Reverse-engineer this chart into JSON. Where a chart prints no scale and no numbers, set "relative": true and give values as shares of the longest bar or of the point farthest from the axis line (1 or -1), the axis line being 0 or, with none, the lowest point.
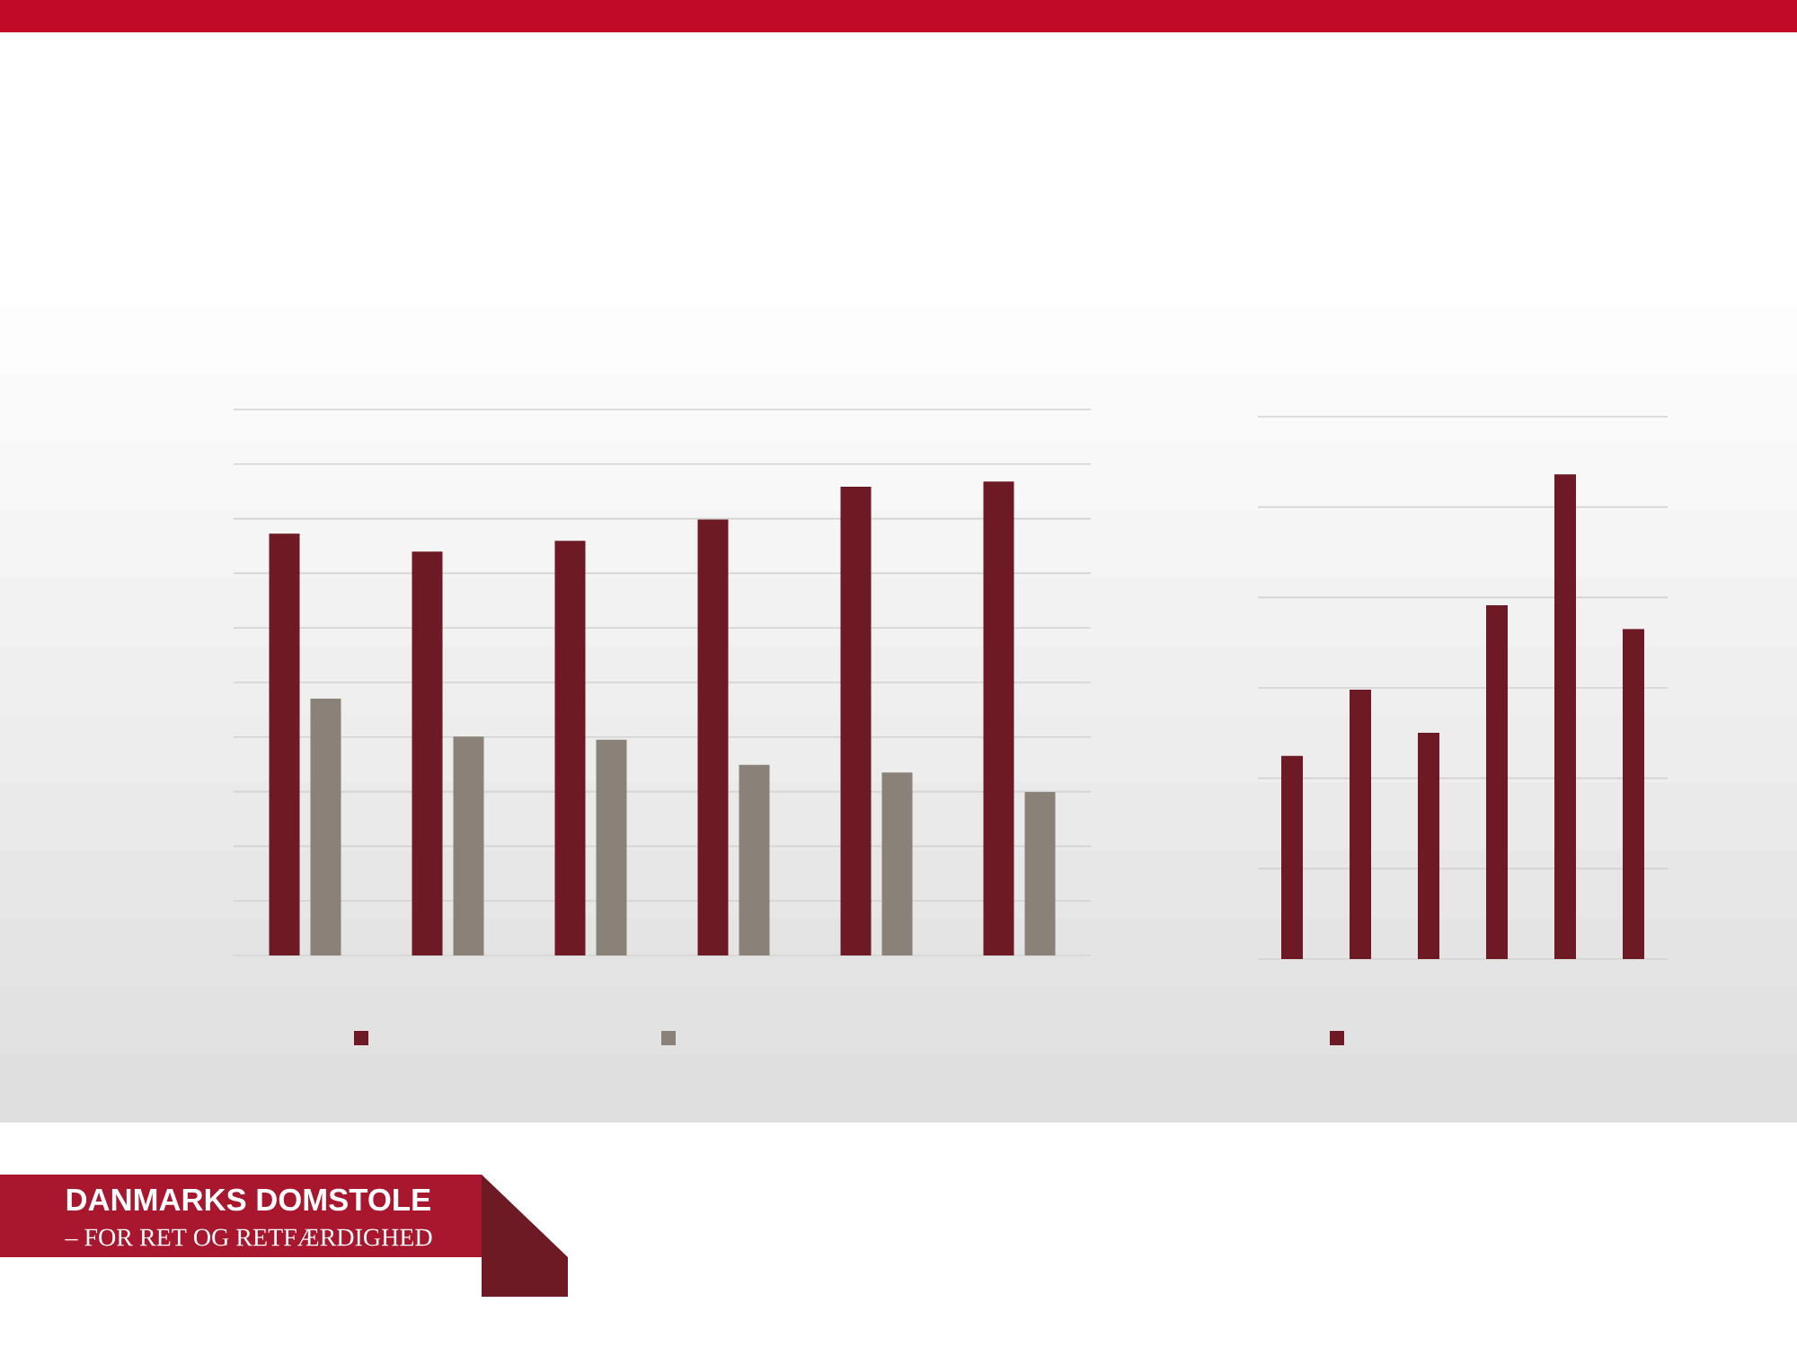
{
  "chart_data": [
    {
      "type": "bar",
      "relative": true,
      "categories": [
        null,
        null,
        null,
        null,
        null,
        null
      ],
      "series": [
        {
          "color": "#6d1a24",
          "values": [
            0.89,
            0.852,
            0.875,
            0.92,
            0.989,
            1
          ]
        },
        {
          "color": "#8a8279",
          "values": [
            0.542,
            0.462,
            0.455,
            0.402,
            0.386,
            0.345
          ]
        }
      ],
      "grid": "y",
      "annotations": [
        "DANMARKS DOMSTOLE",
        "– FOR RET OG RETFÆRDIGHED"
      ]
    },
    {
      "type": "bar",
      "relative": true,
      "categories": [
        null,
        null,
        null,
        null,
        null,
        null
      ],
      "series": [
        {
          "color": "#6d1a24",
          "values": [
            0.419,
            0.556,
            0.467,
            0.73,
            1,
            0.681
          ]
        }
      ],
      "grid": "y"
    }
  ]
}
